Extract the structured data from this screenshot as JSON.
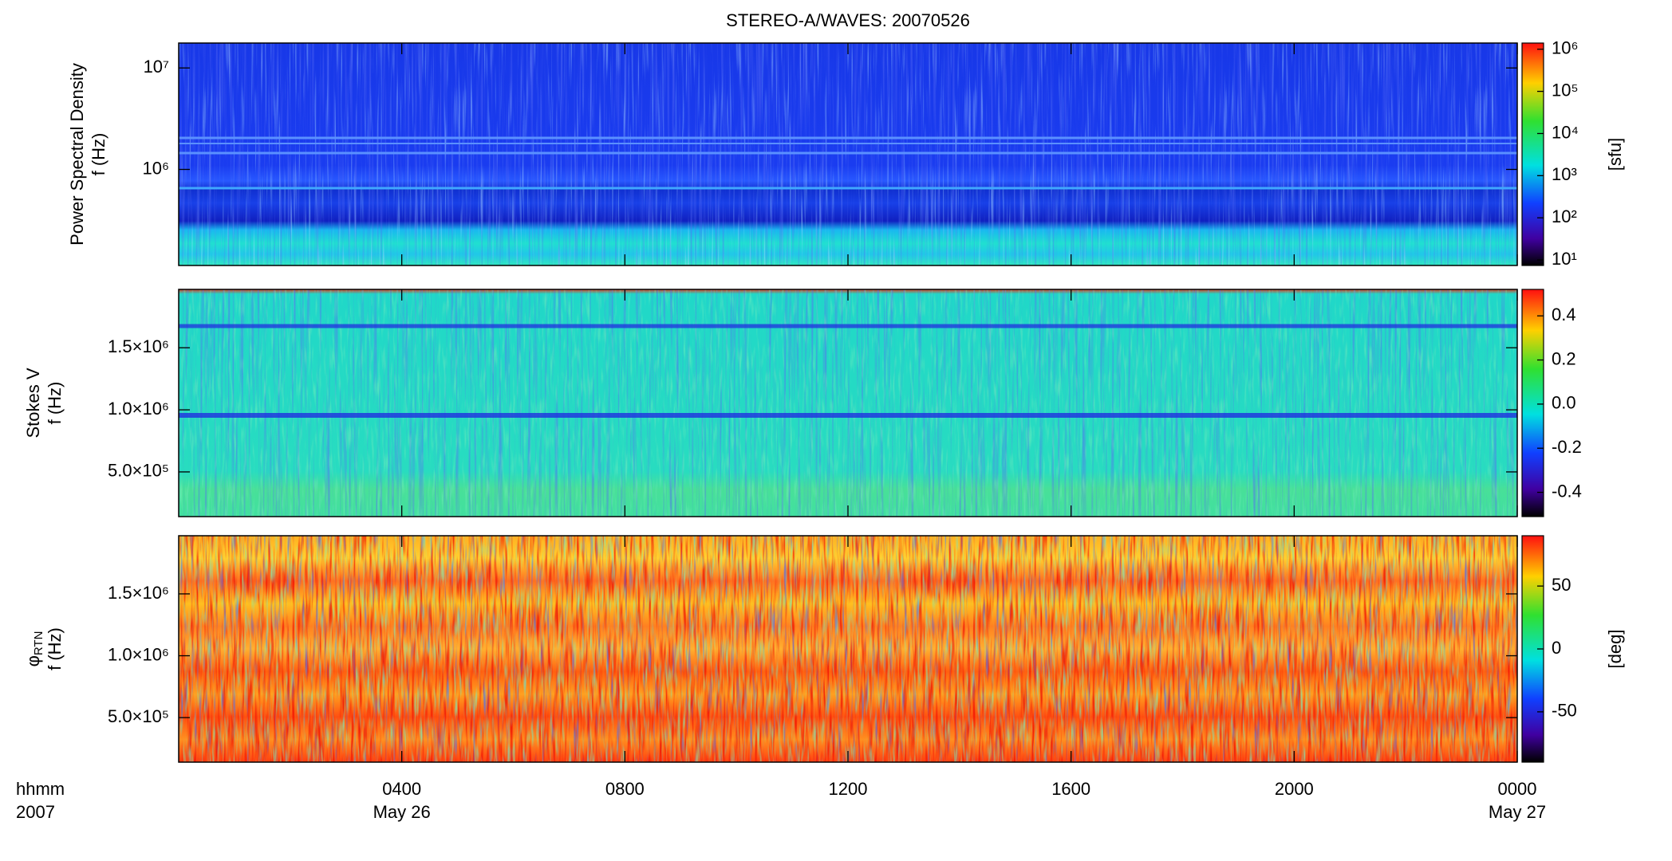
{
  "chart_data": [
    {
      "type": "heatmap",
      "title": "STEREO-A/WAVES: 20070526",
      "ylabel": [
        "Power Spectral Density",
        "f (Hz)"
      ],
      "yscale": "log",
      "ylim": [
        113000,
        17600000
      ],
      "yticks": [
        {
          "value": 1000000,
          "label": "10⁶"
        },
        {
          "value": 10000000,
          "label": "10⁷"
        }
      ],
      "colormap": "rainbow",
      "colorbar": {
        "label": "[sfu]",
        "scale": "log",
        "lim": [
          7.4,
          1400000
        ],
        "ticks": [
          {
            "value": 10,
            "label": "10¹"
          },
          {
            "value": 100,
            "label": "10²"
          },
          {
            "value": 1000,
            "label": "10³"
          },
          {
            "value": 10000,
            "label": "10⁴"
          },
          {
            "value": 100000,
            "label": "10⁵"
          },
          {
            "value": 1000000,
            "label": "10⁶"
          }
        ]
      }
    },
    {
      "type": "heatmap",
      "ylabel": [
        "Stokes V",
        "f (Hz)"
      ],
      "yscale": "linear",
      "ylim": [
        140000,
        1970000
      ],
      "yticks": [
        {
          "value": 500000,
          "label": "5.0×10⁵"
        },
        {
          "value": 1000000,
          "label": "1.0×10⁶"
        },
        {
          "value": 1500000,
          "label": "1.5×10⁶"
        }
      ],
      "colormap": "rainbow",
      "colorbar": {
        "scale": "linear",
        "lim": [
          -0.51,
          0.52
        ],
        "ticks": [
          {
            "value": -0.4,
            "label": "-0.4"
          },
          {
            "value": -0.2,
            "label": "-0.2"
          },
          {
            "value": 0,
            "label": "0.0"
          },
          {
            "value": 0.2,
            "label": "0.2"
          },
          {
            "value": 0.4,
            "label": "0.4"
          }
        ]
      }
    },
    {
      "type": "heatmap",
      "ylabel": [
        "φ",
        "f (Hz)"
      ],
      "ylabel_subscript": "RTN",
      "yscale": "linear",
      "ylim": [
        140000,
        1970000
      ],
      "yticks": [
        {
          "value": 500000,
          "label": "5.0×10⁵"
        },
        {
          "value": 1000000,
          "label": "1.0×10⁶"
        },
        {
          "value": 1500000,
          "label": "1.5×10⁶"
        }
      ],
      "colormap": "rainbow",
      "colorbar": {
        "label": "[deg]",
        "scale": "linear",
        "lim": [
          -90,
          90
        ],
        "ticks": [
          -50,
          0,
          50
        ]
      },
      "xlabel": [
        "hhmm",
        "2007"
      ],
      "xlim": [
        0,
        24
      ],
      "xticks": [
        {
          "value": 4,
          "label": "0400"
        },
        {
          "value": 8,
          "label": "0800"
        },
        {
          "value": 12,
          "label": "1200"
        },
        {
          "value": 16,
          "label": "1600"
        },
        {
          "value": 20,
          "label": "2000"
        },
        {
          "value": 24,
          "label": "0000"
        }
      ],
      "x_date_labels": [
        {
          "value": 4,
          "label": "May 26"
        },
        {
          "value": 24,
          "label": "May 27"
        }
      ]
    }
  ]
}
